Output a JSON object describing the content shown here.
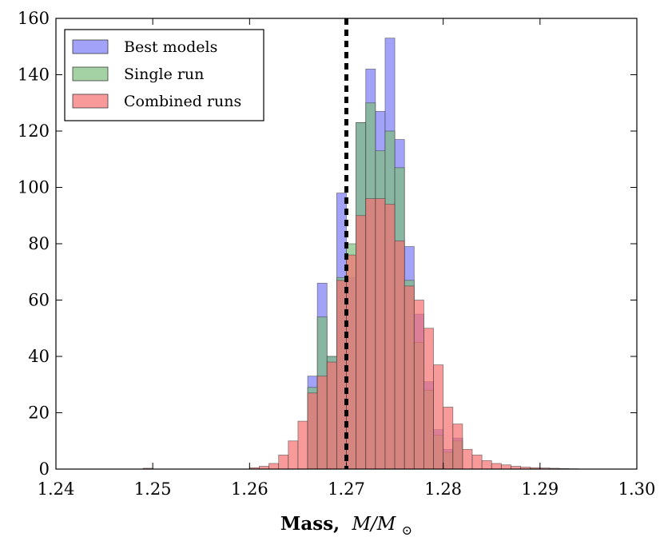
{
  "chart_data": {
    "type": "histogram",
    "xlabel_prefix": "Mass,",
    "xlabel_math": "M/M",
    "xlabel_sub": "⊙",
    "ylabel": "",
    "xlim": [
      1.24,
      1.3
    ],
    "ylim": [
      0,
      160
    ],
    "xticks": [
      "1.24",
      "1.25",
      "1.26",
      "1.27",
      "1.28",
      "1.29",
      "1.30"
    ],
    "yticks": [
      "0",
      "20",
      "40",
      "60",
      "80",
      "100",
      "120",
      "140",
      "160"
    ],
    "xtick_values": [
      1.24,
      1.25,
      1.26,
      1.27,
      1.28,
      1.29,
      1.3
    ],
    "ytick_values": [
      0,
      20,
      40,
      60,
      80,
      100,
      120,
      140,
      160
    ],
    "reference_line": {
      "x": 1.27,
      "style": "dotted",
      "color": "#000000"
    },
    "legend_position": "top-left",
    "series": [
      {
        "name": "Best models",
        "color": "#7b7bf5",
        "bin_width": 0.001,
        "bin_starts": [
          1.266,
          1.267,
          1.268,
          1.269,
          1.27,
          1.271,
          1.272,
          1.273,
          1.274,
          1.275,
          1.276,
          1.277,
          1.278,
          1.279,
          1.28,
          1.281
        ],
        "counts": [
          33,
          66,
          40,
          98,
          68,
          123,
          142,
          127,
          153,
          117,
          79,
          55,
          31,
          14,
          7,
          11
        ]
      },
      {
        "name": "Single run",
        "color": "#7fbf7f",
        "bin_width": 0.001,
        "bin_starts": [
          1.266,
          1.267,
          1.268,
          1.269,
          1.27,
          1.271,
          1.272,
          1.273,
          1.274,
          1.275,
          1.276,
          1.277,
          1.278,
          1.279,
          1.28,
          1.281
        ],
        "counts": [
          29,
          54,
          40,
          68,
          80,
          123,
          130,
          113,
          120,
          107,
          67,
          45,
          28,
          12,
          6,
          10
        ]
      },
      {
        "name": "Combined runs",
        "color": "#f76f6f",
        "bin_width": 0.001,
        "bin_starts": [
          1.249,
          1.26,
          1.261,
          1.262,
          1.263,
          1.264,
          1.265,
          1.266,
          1.267,
          1.268,
          1.269,
          1.27,
          1.271,
          1.272,
          1.273,
          1.274,
          1.275,
          1.276,
          1.277,
          1.278,
          1.279,
          1.28,
          1.281,
          1.282,
          1.283,
          1.284,
          1.285,
          1.286,
          1.287,
          1.288,
          1.289,
          1.29,
          1.291,
          1.292,
          1.293
        ],
        "counts": [
          0.3,
          0.5,
          1,
          2,
          5,
          10,
          17,
          27,
          33,
          38,
          67,
          76,
          90,
          96,
          96,
          94,
          81,
          65,
          60,
          50,
          37,
          22,
          16,
          7,
          5,
          3,
          2,
          1.5,
          1,
          0.7,
          0.5,
          0.4,
          0.3,
          0.2,
          0.1
        ]
      }
    ]
  }
}
